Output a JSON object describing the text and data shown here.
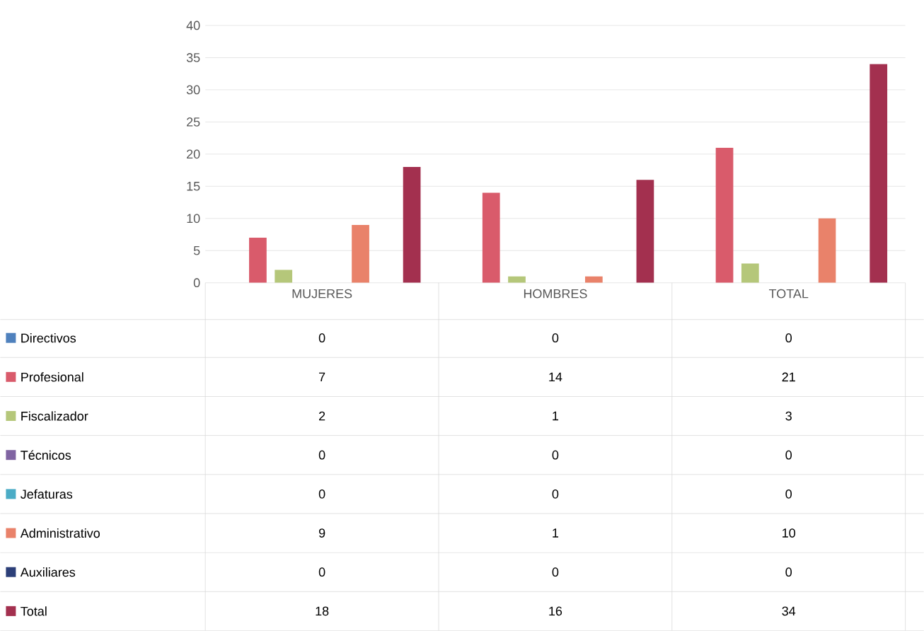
{
  "chart_data": {
    "type": "bar",
    "categories": [
      "MUJERES",
      "HOMBRES",
      "TOTAL"
    ],
    "series": [
      {
        "name": "Directivos",
        "color": "#4f81bd",
        "values": [
          0,
          0,
          0
        ]
      },
      {
        "name": "Profesional",
        "color": "#d95b6b",
        "values": [
          7,
          14,
          21
        ]
      },
      {
        "name": "Fiscalizador",
        "color": "#b5c77a",
        "values": [
          2,
          1,
          3
        ]
      },
      {
        "name": "Técnicos",
        "color": "#8064a2",
        "values": [
          0,
          0,
          0
        ]
      },
      {
        "name": "Jefaturas",
        "color": "#4bacc6",
        "values": [
          0,
          0,
          0
        ]
      },
      {
        "name": "Administrativo",
        "color": "#e9826a",
        "values": [
          9,
          1,
          10
        ]
      },
      {
        "name": "Auxiliares",
        "color": "#2c3f78",
        "values": [
          0,
          0,
          0
        ]
      },
      {
        "name": "Total",
        "color": "#a3304f",
        "values": [
          18,
          16,
          34
        ]
      }
    ],
    "ylim": [
      0,
      40
    ],
    "yticks": [
      0,
      5,
      10,
      15,
      20,
      25,
      30,
      35,
      40
    ],
    "grid": "y",
    "legend": "bottom",
    "data_labels": true
  }
}
